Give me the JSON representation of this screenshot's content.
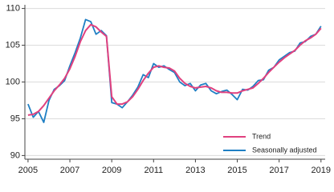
{
  "chart_data": {
    "type": "line",
    "x": [
      2005,
      2005.25,
      2005.5,
      2005.75,
      2006,
      2006.25,
      2006.5,
      2006.75,
      2007,
      2007.25,
      2007.5,
      2007.75,
      2008,
      2008.25,
      2008.5,
      2008.75,
      2009,
      2009.25,
      2009.5,
      2009.75,
      2010,
      2010.25,
      2010.5,
      2010.75,
      2011,
      2011.25,
      2011.5,
      2011.75,
      2012,
      2012.25,
      2012.5,
      2012.75,
      2013,
      2013.25,
      2013.5,
      2013.75,
      2014,
      2014.25,
      2014.5,
      2014.75,
      2015,
      2015.25,
      2015.5,
      2015.75,
      2016,
      2016.25,
      2016.5,
      2016.75,
      2017,
      2017.25,
      2017.5,
      2017.75,
      2018,
      2018.25,
      2018.5,
      2018.75,
      2019
    ],
    "series": [
      {
        "name": "Trend",
        "color": "#e0417f",
        "values": [
          95.5,
          95.6,
          96.0,
          96.8,
          97.8,
          98.8,
          99.6,
          100.5,
          101.8,
          103.5,
          105.5,
          107.0,
          107.8,
          107.5,
          106.8,
          106.2,
          98.0,
          97.0,
          97.0,
          97.3,
          98.0,
          99.0,
          100.2,
          101.2,
          102.0,
          102.2,
          102.0,
          101.9,
          101.5,
          100.5,
          99.8,
          99.4,
          99.2,
          99.3,
          99.4,
          99.2,
          98.8,
          98.6,
          98.6,
          98.5,
          98.5,
          98.8,
          99.0,
          99.2,
          99.8,
          100.5,
          101.3,
          102.0,
          102.7,
          103.3,
          103.8,
          104.3,
          105.0,
          105.6,
          106.0,
          106.5,
          107.3
        ]
      },
      {
        "name": "Seasonally adjusted",
        "color": "#1f7fc4",
        "values": [
          97.0,
          95.2,
          96.0,
          94.5,
          97.5,
          99.0,
          99.5,
          100.2,
          102.2,
          104.0,
          106.0,
          108.5,
          108.2,
          106.5,
          107.0,
          106.3,
          97.2,
          97.0,
          96.5,
          97.3,
          98.2,
          99.3,
          101.0,
          100.6,
          102.5,
          102.0,
          102.2,
          101.7,
          101.3,
          100.0,
          99.5,
          99.8,
          98.8,
          99.6,
          99.8,
          98.8,
          98.4,
          98.7,
          98.9,
          98.3,
          97.6,
          99.0,
          98.9,
          99.4,
          100.2,
          100.3,
          101.6,
          102.0,
          103.0,
          103.5,
          104.0,
          104.2,
          105.3,
          105.5,
          106.2,
          106.5,
          107.6
        ]
      }
    ],
    "xlim": [
      2004.85,
      2019.2
    ],
    "xticks": [
      2005,
      2007,
      2009,
      2011,
      2013,
      2015,
      2017,
      2019
    ],
    "ylim": [
      89.5,
      110.5
    ],
    "yticks": [
      90,
      95,
      100,
      105,
      110
    ],
    "grid": true,
    "legend": "lower-right"
  }
}
